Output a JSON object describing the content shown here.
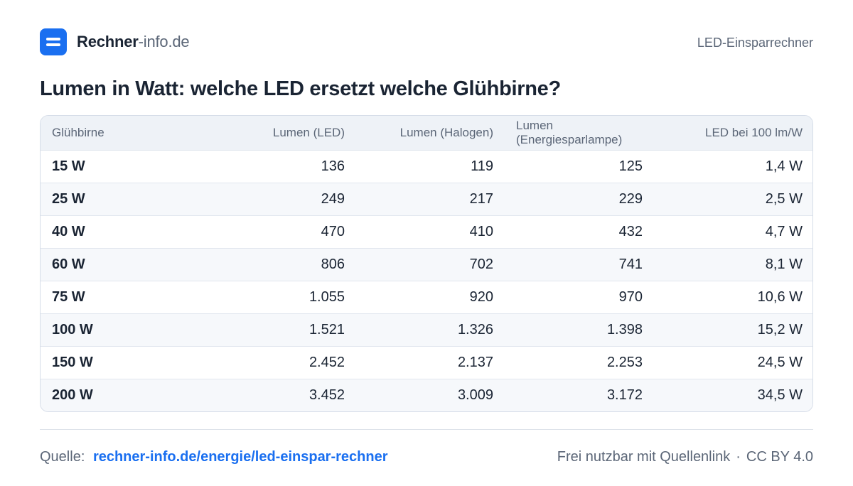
{
  "header": {
    "brand_bold": "Rechner",
    "brand_light": "-info.de",
    "tool_name": "LED-Einsparrechner"
  },
  "title": "Lumen in Watt: welche LED ersetzt welche Glühbirne?",
  "table": {
    "columns": [
      "Glühbirne",
      "Lumen (LED)",
      "Lumen (Halogen)",
      "Lumen (Energiesparlampe)",
      "LED bei 100 lm/W"
    ],
    "column_lines": {
      "col4_line1": "Lumen",
      "col4_line2": "(Energiesparlampe)"
    },
    "rows": [
      [
        "15 W",
        "136",
        "119",
        "125",
        "1,4 W"
      ],
      [
        "25 W",
        "249",
        "217",
        "229",
        "2,5 W"
      ],
      [
        "40 W",
        "470",
        "410",
        "432",
        "4,7 W"
      ],
      [
        "60 W",
        "806",
        "702",
        "741",
        "8,1 W"
      ],
      [
        "75 W",
        "1.055",
        "920",
        "970",
        "10,6 W"
      ],
      [
        "100 W",
        "1.521",
        "1.326",
        "1.398",
        "15,2 W"
      ],
      [
        "150 W",
        "2.452",
        "2.137",
        "2.253",
        "24,5 W"
      ],
      [
        "200 W",
        "3.452",
        "3.009",
        "3.172",
        "34,5 W"
      ]
    ]
  },
  "footer": {
    "source_label": "Quelle:",
    "source_link": "rechner-info.de/energie/led-einspar-rechner",
    "usage": "Frei nutzbar mit Quellenlink",
    "separator": "·",
    "license": "CC BY 4.0"
  },
  "colors": {
    "accent": "#1a6ff0",
    "text": "#1a2433",
    "muted": "#5b6677",
    "header_bg": "#eef2f7"
  }
}
